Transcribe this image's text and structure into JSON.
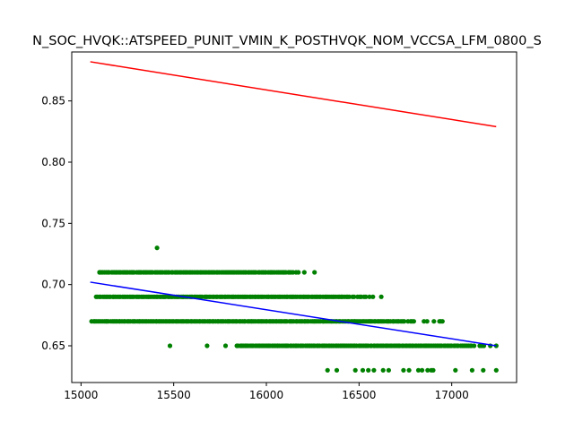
{
  "chart_data": {
    "type": "scatter",
    "title": "N_SOC_HVQK::ATSPEED_PUNIT_VMIN_K_POSTHVQK_NOM_VCCSA_LFM_0800_S",
    "xlabel": "",
    "ylabel": "",
    "xlim": [
      14950,
      17350
    ],
    "ylim": [
      0.62,
      0.89
    ],
    "xticks": [
      15000,
      15500,
      16000,
      16500,
      17000
    ],
    "yticks": [
      0.65,
      0.7,
      0.75,
      0.8,
      0.85
    ],
    "grid": false,
    "colors": {
      "points": "#008000",
      "fit_line": "#0000ff",
      "upper_line": "#ff0000"
    },
    "bands": [
      {
        "y": 0.73,
        "x": [
          15410
        ]
      },
      {
        "y": 0.71,
        "x_range": [
          15100,
          16260
        ],
        "sparse_left": [
          15100,
          15190,
          15240,
          15280,
          15320,
          15350
        ]
      },
      {
        "y": 0.69,
        "x_range": [
          15080,
          16620
        ]
      },
      {
        "y": 0.67,
        "x_range": [
          15060,
          16950
        ]
      },
      {
        "y": 0.65,
        "x_range": [
          15840,
          17240
        ],
        "sparse_left": [
          15480,
          15680,
          15780
        ]
      },
      {
        "y": 0.63,
        "x": [
          16330,
          16380,
          16480,
          16520,
          16550,
          16580,
          16630,
          16660,
          16740,
          16770,
          16820,
          16840,
          16870,
          16890,
          16900,
          17020,
          17110,
          17170,
          17240
        ]
      }
    ],
    "lines": [
      {
        "name": "",
        "color": "#ff0000",
        "x": [
          15050,
          17240
        ],
        "y": [
          0.882,
          0.829
        ]
      },
      {
        "name": "",
        "color": "#0000ff",
        "x": [
          15050,
          17240
        ],
        "y": [
          0.702,
          0.65
        ]
      }
    ]
  }
}
